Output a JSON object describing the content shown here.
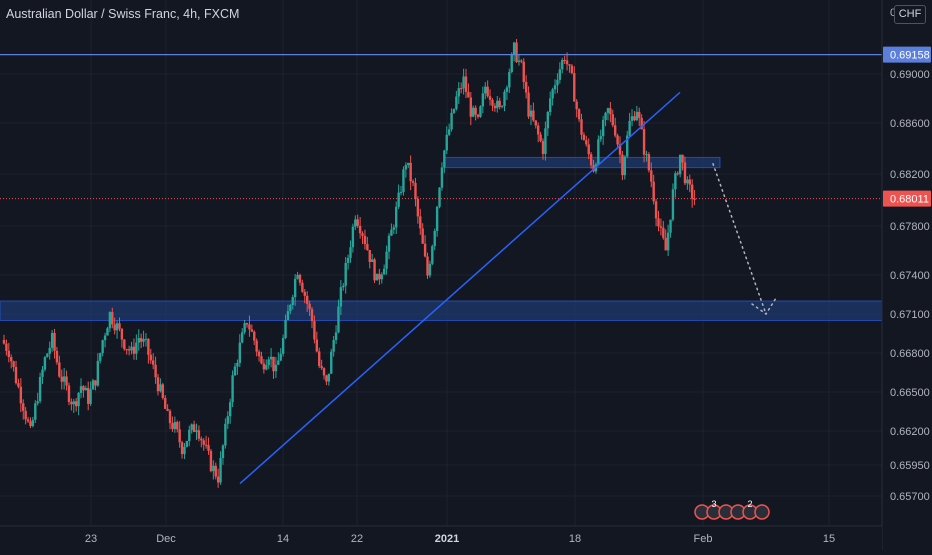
{
  "header": {
    "title": "Australian Dollar / Swiss Franc, 4h, FXCM",
    "currency": "CHF",
    "currency_top_partial": "0"
  },
  "colors": {
    "background": "#131722",
    "bull": "#26a69a",
    "bear": "#ef5350",
    "trendline": "#2962ff",
    "resistance_line": "#5b7fdb",
    "zone_fill": "#1e3a6e",
    "current_price_line": "#ef5350",
    "axis_text": "#b2b5be"
  },
  "event_badges": [
    {
      "icon": "economic-event-icon",
      "count": "3"
    },
    {
      "icon": "economic-event-icon",
      "count": "2"
    }
  ],
  "chart_data": {
    "type": "candlestick",
    "symbol": "AUDCHF",
    "timeframe": "4h",
    "source": "FXCM",
    "x_tick_labels": [
      "23",
      "Dec",
      "14",
      "22",
      "2021",
      "18",
      "Feb",
      "15"
    ],
    "y_tick_labels": [
      "0.65700",
      "0.65950",
      "0.66200",
      "0.66500",
      "0.66800",
      "0.67100",
      "0.67400",
      "0.67800",
      "0.68200",
      "0.68600",
      "0.69000"
    ],
    "ylim": [
      0.6555,
      0.6935
    ],
    "resistance_level": {
      "value": 0.69158,
      "label": "0.69158"
    },
    "current_price": {
      "value": 0.68011,
      "label": "0.68011"
    },
    "zones": [
      {
        "name": "upper-supply-zone",
        "from": 0.6825,
        "to": 0.6833
      },
      {
        "name": "lower-demand-zone",
        "from": 0.6705,
        "to": 0.672
      }
    ],
    "trendline": {
      "from": 0.658,
      "to": 0.6885
    },
    "projection": {
      "from": 0.6828,
      "to": 0.671
    },
    "price_path": [
      0.669,
      0.6682,
      0.666,
      0.664,
      0.6618,
      0.6648,
      0.6675,
      0.669,
      0.6665,
      0.6652,
      0.664,
      0.6655,
      0.6645,
      0.666,
      0.669,
      0.671,
      0.67,
      0.6688,
      0.668,
      0.6692,
      0.6685,
      0.6668,
      0.665,
      0.663,
      0.6622,
      0.6608,
      0.6618,
      0.6625,
      0.661,
      0.6595,
      0.6585,
      0.662,
      0.666,
      0.6685,
      0.6705,
      0.669,
      0.667,
      0.668,
      0.6665,
      0.669,
      0.672,
      0.6745,
      0.6725,
      0.6705,
      0.667,
      0.6655,
      0.669,
      0.6725,
      0.6755,
      0.679,
      0.6775,
      0.6755,
      0.6735,
      0.675,
      0.6775,
      0.68,
      0.683,
      0.681,
      0.6775,
      0.674,
      0.678,
      0.683,
      0.6855,
      0.688,
      0.6895,
      0.687,
      0.686,
      0.689,
      0.688,
      0.687,
      0.6895,
      0.692,
      0.6905,
      0.687,
      0.6855,
      0.684,
      0.688,
      0.69,
      0.6915,
      0.6895,
      0.686,
      0.684,
      0.6825,
      0.685,
      0.687,
      0.6855,
      0.6825,
      0.686,
      0.6872,
      0.684,
      0.6815,
      0.678,
      0.676,
      0.6805,
      0.6835,
      0.681,
      0.6801
    ]
  }
}
